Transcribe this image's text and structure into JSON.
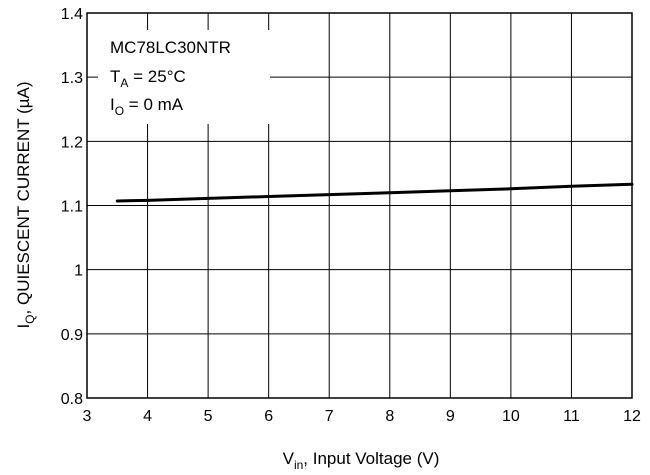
{
  "chart_data": {
    "type": "line",
    "xlabel": {
      "main": "V",
      "sub": "in",
      "rest": ", Input Voltage (V)"
    },
    "ylabel": {
      "main": "I",
      "sub": "Q",
      "rest": ", QUIESCENT CURRENT (µA)"
    },
    "xlim": [
      3,
      12
    ],
    "ylim": [
      0.8,
      1.4
    ],
    "xticks": [
      3,
      4,
      5,
      6,
      7,
      8,
      9,
      10,
      11,
      12
    ],
    "yticks": [
      0.8,
      0.9,
      1,
      1.1,
      1.2,
      1.3,
      1.4
    ],
    "xtick_labels": [
      "3",
      "4",
      "5",
      "6",
      "7",
      "8",
      "9",
      "10",
      "11",
      "12"
    ],
    "ytick_labels": [
      "0.8",
      "0.9",
      "1",
      "1.1",
      "1.2",
      "1.3",
      "1.4"
    ],
    "grid": true,
    "annotation": {
      "line1": "MC78LC30NTR",
      "line2": {
        "main": "T",
        "sub": "A",
        "rest": " = 25°C"
      },
      "line3": {
        "main": "I",
        "sub": "O",
        "rest": " = 0 mA"
      }
    },
    "series": [
      {
        "x": [
          3.5,
          4,
          5,
          6,
          7,
          8,
          9,
          10,
          11,
          12
        ],
        "y": [
          1.107,
          1.108,
          1.111,
          1.114,
          1.117,
          1.12,
          1.123,
          1.126,
          1.13,
          1.133
        ],
        "color": "#000000"
      }
    ]
  }
}
